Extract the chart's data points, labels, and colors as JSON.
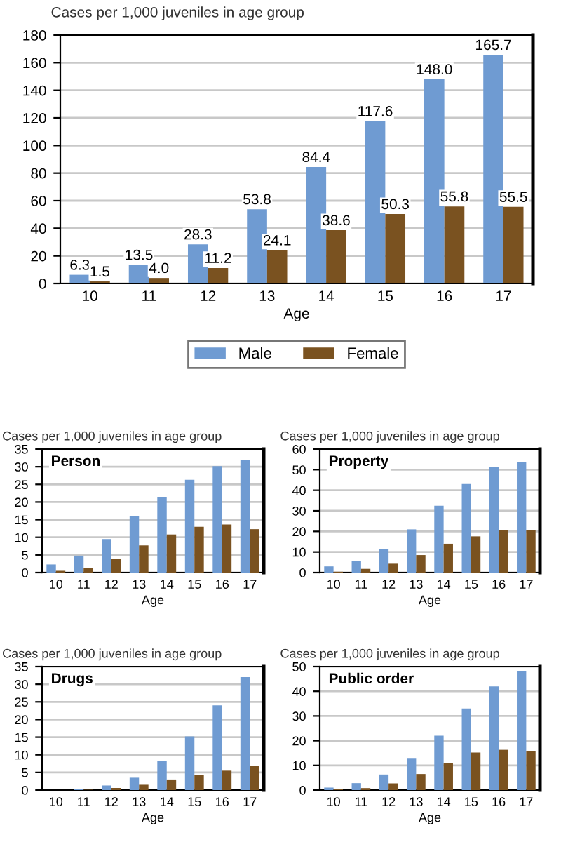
{
  "chart_data": [
    {
      "type": "bar",
      "ylabel": "Cases per 1,000 juveniles in age group",
      "xlabel": "Age",
      "categories": [
        "10",
        "11",
        "12",
        "13",
        "14",
        "15",
        "16",
        "17"
      ],
      "series": [
        {
          "name": "Male",
          "color": "#6f9bd2",
          "values": [
            6.3,
            13.5,
            28.3,
            53.8,
            84.4,
            117.6,
            148.0,
            165.7
          ]
        },
        {
          "name": "Female",
          "color": "#7a5220",
          "values": [
            1.5,
            4.0,
            11.2,
            24.1,
            38.6,
            50.3,
            55.8,
            55.5
          ]
        }
      ],
      "ylim": [
        0,
        180
      ],
      "yticks": [
        0,
        20,
        40,
        60,
        80,
        100,
        120,
        140,
        160,
        180
      ],
      "grid": "y",
      "legend": "bottom",
      "value_labels": [
        [
          "6.3",
          "13.5",
          "28.3",
          "53.8",
          "84.4",
          "117.6",
          "148.0",
          "165.7"
        ],
        [
          "1.5",
          "4.0",
          "11.2",
          "24.1",
          "38.6",
          "50.3",
          "55.8",
          "55.5"
        ]
      ]
    },
    {
      "type": "bar",
      "title": "Person",
      "ylabel": "Cases per 1,000 juveniles in age group",
      "xlabel": "Age",
      "categories": [
        "10",
        "11",
        "12",
        "13",
        "14",
        "15",
        "16",
        "17"
      ],
      "series": [
        {
          "color": "#6f9bd2",
          "values": [
            2.3,
            4.8,
            9.5,
            16,
            21.5,
            26.3,
            30.2,
            32
          ]
        },
        {
          "color": "#7a5220",
          "values": [
            0.5,
            1.3,
            3.8,
            7.7,
            10.8,
            13,
            13.6,
            12.3
          ]
        }
      ],
      "ylim": [
        0,
        35
      ],
      "yticks": [
        0,
        5,
        10,
        15,
        20,
        25,
        30,
        35
      ],
      "grid": "y"
    },
    {
      "type": "bar",
      "title": "Property",
      "ylabel": "Cases per 1,000 juveniles in age group",
      "xlabel": "Age",
      "categories": [
        "10",
        "11",
        "12",
        "13",
        "14",
        "15",
        "16",
        "17"
      ],
      "series": [
        {
          "color": "#6f9bd2",
          "values": [
            3,
            5.5,
            11.5,
            21,
            32.5,
            43,
            51.3,
            53.8
          ]
        },
        {
          "color": "#7a5220",
          "values": [
            0.4,
            1.8,
            4.3,
            8.5,
            14,
            17.6,
            20.5,
            20.5
          ]
        }
      ],
      "ylim": [
        0,
        60
      ],
      "yticks": [
        0,
        10,
        20,
        30,
        40,
        50,
        60
      ],
      "grid": "y"
    },
    {
      "type": "bar",
      "title": "Drugs",
      "ylabel": "Cases per 1,000 juveniles in age group",
      "xlabel": "Age",
      "categories": [
        "10",
        "11",
        "12",
        "13",
        "14",
        "15",
        "16",
        "17"
      ],
      "series": [
        {
          "color": "#6f9bd2",
          "values": [
            null,
            0.2,
            1.3,
            3.5,
            8.3,
            15.2,
            24,
            32
          ]
        },
        {
          "color": "#7a5220",
          "values": [
            null,
            0.1,
            0.6,
            1.5,
            3,
            4.2,
            5.5,
            6.8
          ]
        }
      ],
      "ylim": [
        0,
        35
      ],
      "yticks": [
        0,
        5,
        10,
        15,
        20,
        25,
        30,
        35
      ],
      "grid": "y"
    },
    {
      "type": "bar",
      "title": "Public order",
      "ylabel": "Cases per 1,000 juveniles in age group",
      "xlabel": "Age",
      "categories": [
        "10",
        "11",
        "12",
        "13",
        "14",
        "15",
        "16",
        "17"
      ],
      "series": [
        {
          "color": "#6f9bd2",
          "values": [
            1,
            2.8,
            6.3,
            13,
            22,
            33,
            42,
            48
          ]
        },
        {
          "color": "#7a5220",
          "values": [
            0.3,
            0.8,
            2.7,
            6.5,
            11,
            15.2,
            16.3,
            15.8
          ]
        }
      ],
      "ylim": [
        0,
        50
      ],
      "yticks": [
        0,
        10,
        20,
        30,
        40,
        50
      ],
      "grid": "y"
    }
  ]
}
